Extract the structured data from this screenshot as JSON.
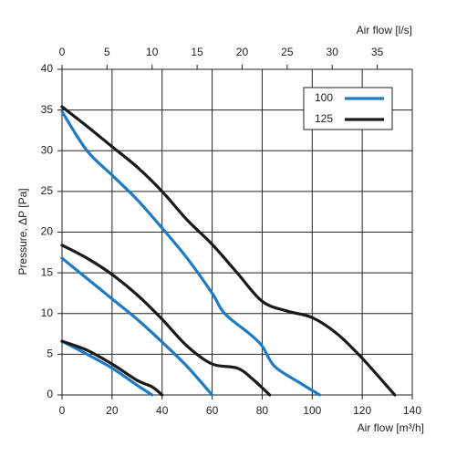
{
  "chart_data": {
    "type": "line",
    "x_label": "Air flow [m³/h]",
    "x2_label": "Air flow [l/s]",
    "y_label": "Pressure, ΔP [Pa]",
    "xlim": [
      0,
      140
    ],
    "xticks": [
      0,
      20,
      40,
      60,
      80,
      100,
      120,
      140
    ],
    "x2lim": [
      0,
      38.89
    ],
    "x2ticks": [
      0,
      5,
      10,
      15,
      20,
      25,
      30,
      35
    ],
    "ylim": [
      0,
      40
    ],
    "yticks": [
      0,
      5,
      10,
      15,
      20,
      25,
      30,
      35,
      40
    ],
    "grid": true,
    "legend": "top-right",
    "series": [
      {
        "name": "100",
        "color": "#1f7ac4",
        "lines": [
          {
            "x": [
              0,
              10,
              20,
              30,
              40,
              50,
              60,
              65,
              75,
              80,
              85,
              95,
              103
            ],
            "values": [
              34.8,
              30,
              27,
              24,
              20.5,
              16.8,
              12.5,
              10,
              7.5,
              6,
              3.5,
              1.5,
              0
            ]
          },
          {
            "x": [
              0,
              10,
              20,
              30,
              40,
              50,
              60
            ],
            "values": [
              16.8,
              14.3,
              11.8,
              9.3,
              6.5,
              3.5,
              0
            ]
          },
          {
            "x": [
              0,
              10,
              20,
              30,
              36
            ],
            "values": [
              6.6,
              5,
              3.3,
              1.2,
              0
            ]
          }
        ]
      },
      {
        "name": "125",
        "color": "#1a1a1a",
        "lines": [
          {
            "x": [
              0,
              10,
              20,
              30,
              40,
              50,
              60,
              70,
              80,
              90,
              100,
              110,
              120,
              133
            ],
            "values": [
              35.4,
              33,
              30.5,
              28,
              25,
              21.5,
              18.5,
              15,
              11.5,
              10.3,
              9.5,
              7.5,
              4.5,
              0
            ]
          },
          {
            "x": [
              0,
              10,
              20,
              30,
              40,
              50,
              60,
              70,
              76,
              83
            ],
            "values": [
              18.4,
              16.8,
              14.8,
              12.3,
              9.3,
              6,
              3.8,
              3.3,
              2,
              0
            ]
          },
          {
            "x": [
              0,
              10,
              20,
              30,
              36,
              40
            ],
            "values": [
              6.6,
              5.5,
              3.8,
              1.8,
              1,
              0
            ]
          }
        ]
      }
    ]
  }
}
